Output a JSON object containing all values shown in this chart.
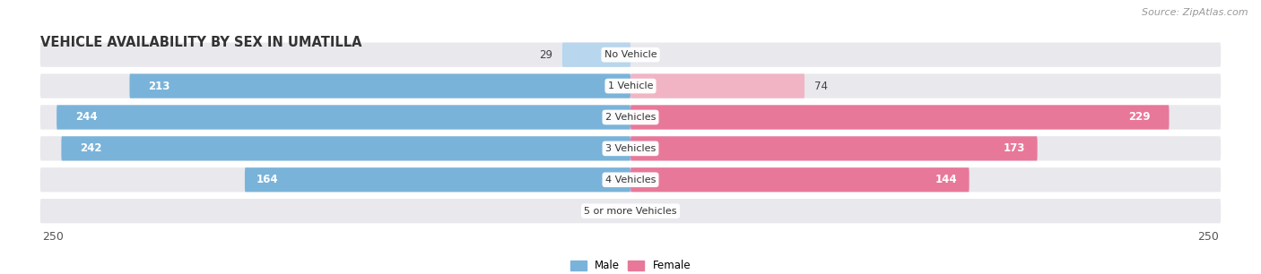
{
  "title": "VEHICLE AVAILABILITY BY SEX IN UMATILLA",
  "source": "Source: ZipAtlas.com",
  "categories": [
    "No Vehicle",
    "1 Vehicle",
    "2 Vehicles",
    "3 Vehicles",
    "4 Vehicles",
    "5 or more Vehicles"
  ],
  "male_values": [
    29,
    213,
    244,
    242,
    164,
    0
  ],
  "female_values": [
    0,
    74,
    229,
    173,
    144,
    0
  ],
  "male_color": "#7ab3d9",
  "female_color": "#e87899",
  "male_color_light": "#b8d6ed",
  "female_color_light": "#f0b4c5",
  "bar_bg_color": "#e8e8ed",
  "xlim": 250,
  "legend_male": "Male",
  "legend_female": "Female",
  "title_fontsize": 10.5,
  "source_fontsize": 8,
  "label_fontsize": 8.5,
  "axis_fontsize": 9
}
